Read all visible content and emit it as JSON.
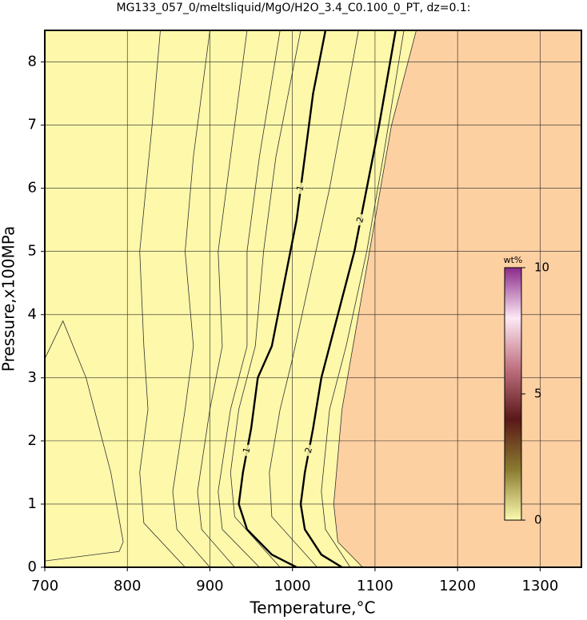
{
  "chart_data": {
    "type": "contour",
    "title": "MG133_057_0/meltsliquid/MgO/H2O_3.4_C0.100_0_PT, dz=0.1:",
    "x_label": "Temperature,°C",
    "y_label": "Pressure,x100MPa",
    "xlim": [
      700,
      1350
    ],
    "ylim": [
      0,
      8.5
    ],
    "xticks": [
      700,
      800,
      900,
      1000,
      1100,
      1200,
      1300
    ],
    "yticks": [
      0,
      1,
      2,
      3,
      4,
      5,
      6,
      7,
      8
    ],
    "grid": true,
    "colors": {
      "low": "#fdf8aa",
      "high": "#fdd0a2",
      "line": "#333333"
    },
    "series": [
      {
        "bold": false,
        "x": [
          700,
          790,
          795,
          780,
          750,
          722,
          700
        ],
        "y": [
          0.1,
          0.25,
          0.4,
          1.5,
          3,
          3.9,
          3.3
        ]
      },
      {
        "bold": false,
        "x": [
          870,
          820,
          815,
          825,
          820,
          815,
          830,
          840
        ],
        "y": [
          0,
          0.7,
          1.5,
          2.5,
          3.5,
          5,
          7,
          8.5
        ]
      },
      {
        "bold": false,
        "x": [
          900,
          860,
          855,
          870,
          880,
          870,
          880,
          900
        ],
        "y": [
          0,
          0.6,
          1.2,
          2.5,
          3.5,
          5,
          6.5,
          8.5
        ]
      },
      {
        "bold": false,
        "x": [
          930,
          890,
          885,
          900,
          915,
          910,
          925,
          945
        ],
        "y": [
          0,
          0.6,
          1.2,
          2.5,
          3.5,
          5,
          6.5,
          8.5
        ]
      },
      {
        "bold": false,
        "x": [
          960,
          915,
          910,
          925,
          945,
          945,
          960,
          985
        ],
        "y": [
          0,
          0.6,
          1.2,
          2.5,
          3.5,
          5,
          6.5,
          8.5
        ]
      },
      {
        "bold": false,
        "x": [
          985,
          930,
          925,
          935,
          955,
          965,
          980,
          1010
        ],
        "y": [
          0,
          0.8,
          1.5,
          2.5,
          3.5,
          5,
          6.5,
          8.5
        ]
      },
      {
        "bold": true,
        "name": "1",
        "x": [
          1005,
          975,
          945,
          935,
          940,
          950,
          958,
          975,
          990,
          1005,
          1015,
          1025,
          1040
        ],
        "y": [
          0,
          0.2,
          0.6,
          1,
          1.5,
          2.2,
          3,
          3.5,
          4.5,
          5.5,
          6.5,
          7.5,
          8.5
        ]
      },
      {
        "bold": false,
        "x": [
          1030,
          975,
          972,
          985,
          1000,
          1020,
          1045,
          1080
        ],
        "y": [
          0,
          0.8,
          1.5,
          2.5,
          3.3,
          4.5,
          6,
          8.5
        ]
      },
      {
        "bold": true,
        "name": "2",
        "x": [
          1060,
          1035,
          1015,
          1010,
          1015,
          1025,
          1035,
          1055,
          1075,
          1090,
          1105,
          1125
        ],
        "y": [
          0,
          0.2,
          0.6,
          1,
          1.5,
          2.2,
          3,
          4,
          5,
          6,
          7,
          8.5
        ]
      },
      {
        "bold": false,
        "x": [
          1070,
          1040,
          1035,
          1045,
          1065,
          1090,
          1110,
          1135
        ],
        "y": [
          0,
          0.6,
          1.2,
          2.5,
          3.5,
          5,
          6.5,
          8.5
        ]
      },
      {
        "bold": false,
        "x": [
          1085,
          1055,
          1050,
          1060,
          1080,
          1100,
          1120,
          1150
        ],
        "y": [
          0,
          0.4,
          1,
          2.5,
          4,
          5.5,
          7,
          8.5
        ]
      }
    ],
    "colorbar": {
      "label": "wt%",
      "lim": [
        0,
        10
      ],
      "ticks": [
        0,
        5,
        10
      ],
      "colors": [
        "#fbfab0",
        "#8a7a30",
        "#5a1818",
        "#c07080",
        "#fde8f4",
        "#8a2a8a"
      ]
    }
  }
}
